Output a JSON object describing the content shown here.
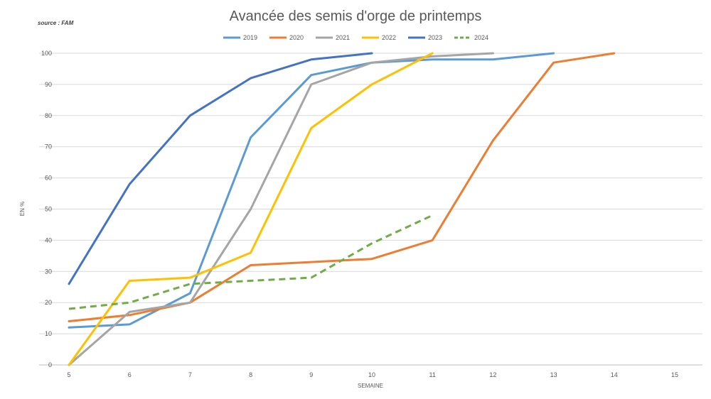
{
  "chart_data": {
    "type": "line",
    "title": "Avancée des semis d'orge de printemps",
    "source": "source : FAM",
    "xlabel": "SEMAINE",
    "ylabel": "EN %",
    "x_ticks": [
      5,
      6,
      7,
      8,
      9,
      10,
      11,
      12,
      13,
      14,
      15
    ],
    "y_ticks": [
      0,
      10,
      20,
      30,
      40,
      50,
      60,
      70,
      80,
      90,
      100
    ],
    "xlim": [
      5,
      15
    ],
    "ylim": [
      0,
      100
    ],
    "grid": "horizontal",
    "legend_position": "top",
    "series": [
      {
        "name": "2019",
        "color": "#5B9BD5",
        "dashed": false,
        "x": [
          5,
          6,
          7,
          8,
          9,
          10,
          11,
          12,
          13
        ],
        "y": [
          12,
          13,
          23,
          73,
          93,
          97,
          98,
          98,
          100
        ]
      },
      {
        "name": "2020",
        "color": "#ED7D31",
        "dashed": false,
        "x": [
          5,
          6,
          7,
          8,
          9,
          10,
          11,
          12,
          13,
          14
        ],
        "y": [
          14,
          16,
          20,
          32,
          33,
          34,
          40,
          72,
          97,
          100
        ]
      },
      {
        "name": "2021",
        "color": "#A5A5A5",
        "dashed": false,
        "x": [
          5,
          6,
          7,
          8,
          9,
          10,
          11,
          12
        ],
        "y": [
          0,
          17,
          20,
          50,
          90,
          97,
          99,
          100
        ]
      },
      {
        "name": "2022",
        "color": "#FFC000",
        "dashed": false,
        "x": [
          5,
          6,
          7,
          8,
          9,
          10,
          11
        ],
        "y": [
          0,
          27,
          28,
          36,
          76,
          90,
          100
        ]
      },
      {
        "name": "2023",
        "color": "#4472C4",
        "dashed": false,
        "x": [
          5,
          6,
          7,
          8,
          9,
          10
        ],
        "y": [
          26,
          58,
          80,
          92,
          98,
          100
        ]
      },
      {
        "name": "2024",
        "color": "#70AD47",
        "dashed": true,
        "x": [
          5,
          6,
          7,
          8,
          9,
          10,
          11
        ],
        "y": [
          18,
          20,
          26,
          27,
          28,
          39,
          48
        ]
      }
    ]
  }
}
